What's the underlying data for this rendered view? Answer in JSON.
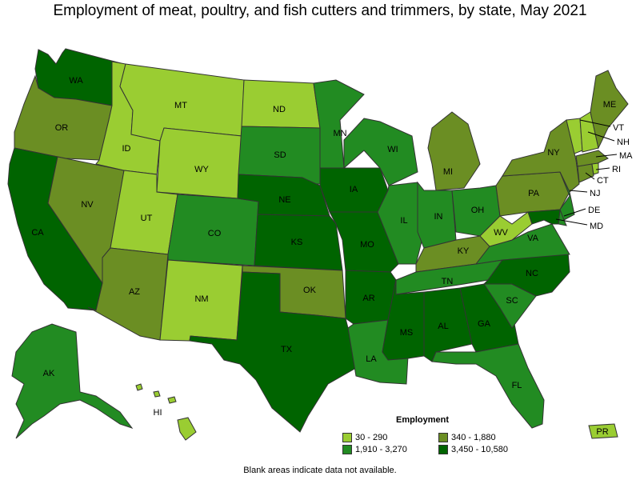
{
  "title": "Employment of meat, poultry, and fish cutters and trimmers, by state, May 2021",
  "legend": {
    "title": "Employment",
    "items": [
      {
        "label": "30 - 290",
        "color": "#9acd32"
      },
      {
        "label": "340 - 1,880",
        "color": "#6b8e23"
      },
      {
        "label": "1,910 - 3,270",
        "color": "#228b22"
      },
      {
        "label": "3,450 - 10,580",
        "color": "#006400"
      }
    ]
  },
  "footnote": "Blank areas indicate data not available.",
  "states": [
    {
      "abbr": "WA",
      "cls": 4
    },
    {
      "abbr": "OR",
      "cls": 2
    },
    {
      "abbr": "CA",
      "cls": 4
    },
    {
      "abbr": "NV",
      "cls": 2
    },
    {
      "abbr": "ID",
      "cls": 1
    },
    {
      "abbr": "MT",
      "cls": 1
    },
    {
      "abbr": "WY",
      "cls": 1
    },
    {
      "abbr": "UT",
      "cls": 1
    },
    {
      "abbr": "AZ",
      "cls": 2
    },
    {
      "abbr": "CO",
      "cls": 3
    },
    {
      "abbr": "NM",
      "cls": 1
    },
    {
      "abbr": "ND",
      "cls": 1
    },
    {
      "abbr": "SD",
      "cls": 3
    },
    {
      "abbr": "NE",
      "cls": 4
    },
    {
      "abbr": "KS",
      "cls": 4
    },
    {
      "abbr": "OK",
      "cls": 2
    },
    {
      "abbr": "TX",
      "cls": 4
    },
    {
      "abbr": "MN",
      "cls": 3
    },
    {
      "abbr": "IA",
      "cls": 4
    },
    {
      "abbr": "MO",
      "cls": 4
    },
    {
      "abbr": "AR",
      "cls": 4
    },
    {
      "abbr": "LA",
      "cls": 3
    },
    {
      "abbr": "WI",
      "cls": 3
    },
    {
      "abbr": "IL",
      "cls": 3
    },
    {
      "abbr": "MI",
      "cls": 2
    },
    {
      "abbr": "IN",
      "cls": 3
    },
    {
      "abbr": "OH",
      "cls": 3
    },
    {
      "abbr": "KY",
      "cls": 2
    },
    {
      "abbr": "TN",
      "cls": 3
    },
    {
      "abbr": "MS",
      "cls": 4
    },
    {
      "abbr": "AL",
      "cls": 4
    },
    {
      "abbr": "GA",
      "cls": 4
    },
    {
      "abbr": "FL",
      "cls": 3
    },
    {
      "abbr": "SC",
      "cls": 3
    },
    {
      "abbr": "NC",
      "cls": 4
    },
    {
      "abbr": "VA",
      "cls": 3
    },
    {
      "abbr": "WV",
      "cls": 1
    },
    {
      "abbr": "PA",
      "cls": 2
    },
    {
      "abbr": "NY",
      "cls": 2
    },
    {
      "abbr": "ME",
      "cls": 2
    },
    {
      "abbr": "VT",
      "cls": 1
    },
    {
      "abbr": "NH",
      "cls": 1
    },
    {
      "abbr": "MA",
      "cls": 2
    },
    {
      "abbr": "RI",
      "cls": 1
    },
    {
      "abbr": "CT",
      "cls": 2
    },
    {
      "abbr": "NJ",
      "cls": 3
    },
    {
      "abbr": "DE",
      "cls": 3
    },
    {
      "abbr": "MD",
      "cls": 4
    },
    {
      "abbr": "AK",
      "cls": 3
    },
    {
      "abbr": "HI",
      "cls": 1
    },
    {
      "abbr": "PR",
      "cls": 1
    }
  ]
}
